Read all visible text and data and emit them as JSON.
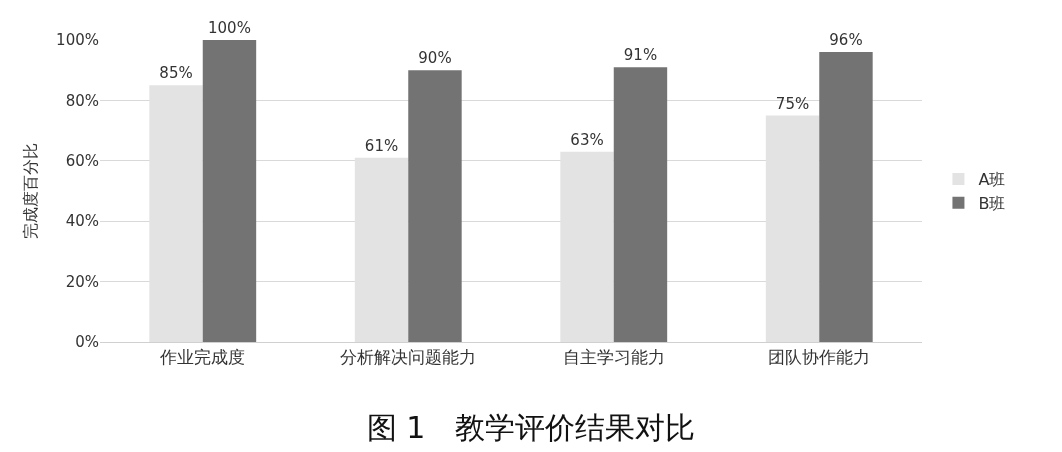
{
  "chart_data": {
    "type": "bar",
    "title": "图 1　教学评价结果对比",
    "ylabel": "完成度百分比",
    "categories": [
      "作业完成度",
      "分析解决问题能力",
      "自主学习能力",
      "团队协作能力"
    ],
    "series": [
      {
        "name": "A班",
        "color": "#e3e3e3",
        "values": [
          85,
          61,
          63,
          75
        ],
        "value_labels": [
          "85%",
          "61%",
          "63%",
          "75%"
        ]
      },
      {
        "name": "B班",
        "color": "#737373",
        "values": [
          100,
          90,
          91,
          96
        ],
        "value_labels": [
          "100%",
          "90%",
          "91%",
          "96%"
        ]
      }
    ],
    "ylim": [
      0,
      100
    ],
    "yticks": [
      {
        "value": 0,
        "label": "0%"
      },
      {
        "value": 20,
        "label": "20%"
      },
      {
        "value": 40,
        "label": "40%"
      },
      {
        "value": 60,
        "label": "60%"
      },
      {
        "value": 80,
        "label": "80%"
      },
      {
        "value": 100,
        "label": "100%"
      }
    ],
    "grid": "y",
    "legend": "right"
  }
}
